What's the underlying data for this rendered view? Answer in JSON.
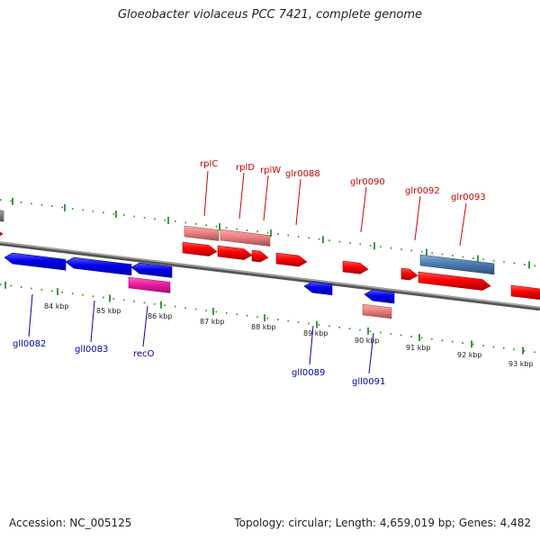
{
  "title": "Gloeobacter violaceus PCC 7421, complete genome",
  "footer": {
    "accession": "Accession: NC_005125",
    "summary": "Topology: circular; Length: 4,659,019 bp; Genes: 4,482"
  },
  "colors": {
    "backbone": "#808080",
    "forward_gene": "#ff0000",
    "forward_gene_light": "#ee8080",
    "reverse_gene": "#0000ee",
    "reverse_gene_pink": "#ee1aa0",
    "reverse_gene_light": "#ee8080",
    "rna_feature": "#4a7db3",
    "tick": "#2a8a2a",
    "forward_label": "#cc0000",
    "reverse_label": "#0000aa"
  },
  "scale_labels": [
    "84 kbp",
    "85 kbp",
    "86 kbp",
    "87 kbp",
    "88 kbp",
    "89 kbp",
    "90 kbp",
    "91 kbp",
    "92 kbp",
    "93 kbp"
  ],
  "gene_labels": {
    "forward": [
      "rplC",
      "rplD",
      "rplW",
      "glr0088",
      "glr0090",
      "glr0092",
      "glr0093"
    ],
    "reverse": [
      "gll0082",
      "gll0083",
      "recO",
      "gll0089",
      "gll0091"
    ]
  }
}
